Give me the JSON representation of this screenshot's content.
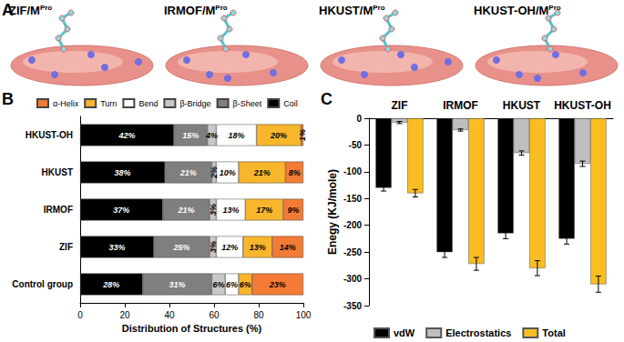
{
  "figure": {
    "panel_a": {
      "title": "A",
      "images": [
        {
          "label": "ZIF/M",
          "superscript": "Pro"
        },
        {
          "label": "IRMOF/M",
          "superscript": "Pro"
        },
        {
          "label": "HKUST/M",
          "superscript": "Pro"
        },
        {
          "label": "HKUST-OH/M",
          "superscript": "Pro"
        }
      ]
    }
  },
  "chart_data": [
    {
      "type": "bar",
      "title": "B",
      "orientation": "horizontal",
      "stacked": true,
      "data_labels": true,
      "legend": "top",
      "grid": false,
      "xlabel": "Distribution of Structures (%)",
      "xlim": [
        0,
        100
      ],
      "xticks": [
        0,
        20,
        40,
        60,
        80,
        100
      ],
      "categories": [
        "HKUST-OH",
        "HKUST",
        "IRMOF",
        "ZIF",
        "Control group"
      ],
      "series": [
        {
          "name": "Coil",
          "color": "#000000",
          "values": [
            42,
            38,
            37,
            33,
            28
          ],
          "value_labels": [
            "42%",
            "38%",
            "37%",
            "33%",
            "28%"
          ]
        },
        {
          "name": "β-Sheet",
          "color": "#7f7f7f",
          "values": [
            15,
            21,
            21,
            25,
            31
          ],
          "value_labels": [
            "15%",
            "21%",
            "21%",
            "25%",
            "31%"
          ]
        },
        {
          "name": "β-Bridge",
          "color": "#c8c8c8",
          "values": [
            4,
            2,
            3,
            3,
            6
          ],
          "value_labels": [
            "4%",
            "2%",
            "3%",
            "3%",
            "6%"
          ]
        },
        {
          "name": "Bend",
          "color": "#ffffff",
          "values": [
            18,
            10,
            13,
            12,
            6
          ],
          "value_labels": [
            "18%",
            "10%",
            "13%",
            "12%",
            "6%"
          ]
        },
        {
          "name": "Turn",
          "color": "#f8b62d",
          "values": [
            20,
            21,
            17,
            13,
            6
          ],
          "value_labels": [
            "20%",
            "21%",
            "17%",
            "13%",
            "6%"
          ]
        },
        {
          "name": "α-Helix",
          "color": "#f47b35",
          "values": [
            1,
            8,
            9,
            14,
            23
          ],
          "value_labels": [
            "1%",
            "8%",
            "9%",
            "14%",
            "23%"
          ]
        }
      ]
    },
    {
      "type": "bar",
      "title": "C",
      "legend": "lower left",
      "grid": false,
      "ylabel": "Enegy (KJ/mole)",
      "ylim": [
        -350,
        0
      ],
      "yticks": [
        -350,
        -300,
        -250,
        -200,
        -150,
        -100,
        -50,
        0
      ],
      "categories": [
        "ZIF",
        "IRMOF",
        "HKUST",
        "HKUST-OH"
      ],
      "series": [
        {
          "name": "vdW",
          "color": "#000000",
          "values": [
            -130,
            -250,
            -215,
            -225
          ],
          "errors": [
            6,
            10,
            10,
            10
          ]
        },
        {
          "name": "Electrostatics",
          "color": "#bfbfbf",
          "values": [
            -8,
            -22,
            -65,
            -85
          ],
          "errors": [
            2,
            2,
            4,
            5
          ]
        },
        {
          "name": "Total",
          "color": "#f9bd22",
          "values": [
            -140,
            -272,
            -280,
            -310
          ],
          "errors": [
            7,
            12,
            14,
            15
          ]
        }
      ]
    }
  ]
}
